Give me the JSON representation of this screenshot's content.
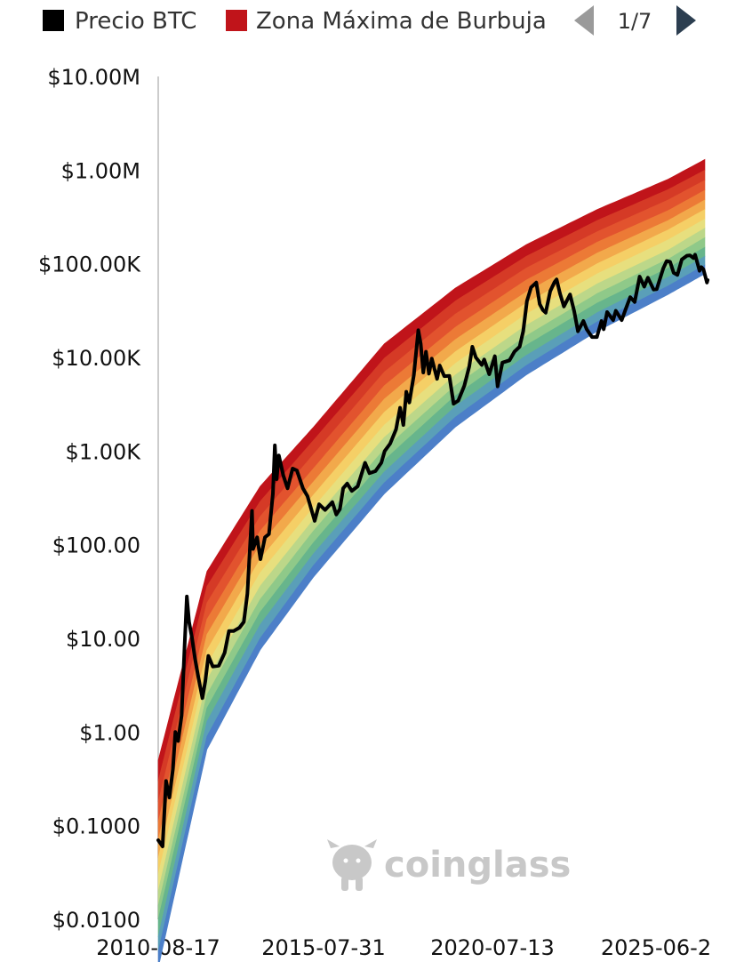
{
  "legend": {
    "items": [
      {
        "label": "Precio BTC",
        "color": "#000000"
      },
      {
        "label": "Zona Máxima de Burbuja",
        "color": "#c0141a"
      }
    ],
    "pager": {
      "label": "1/7",
      "prev_color": "#9a9a9a",
      "next_color": "#2c3e50"
    }
  },
  "watermark": {
    "text": "coinglass",
    "icon": "coinglass-bull-icon"
  },
  "chart_data": {
    "type": "area",
    "y_scale": "log",
    "ylim": [
      0.01,
      10000000
    ],
    "yticks": [
      {
        "value": 10000000,
        "label": "$10.00M"
      },
      {
        "value": 1000000,
        "label": "$1.00M"
      },
      {
        "value": 100000,
        "label": "$100.00K"
      },
      {
        "value": 10000,
        "label": "$10.00K"
      },
      {
        "value": 1000,
        "label": "$1.00K"
      },
      {
        "value": 100,
        "label": "$100.00"
      },
      {
        "value": 10,
        "label": "$10.00"
      },
      {
        "value": 1,
        "label": "$1.00"
      },
      {
        "value": 0.1,
        "label": "$0.1000"
      },
      {
        "value": 0.01,
        "label": "$0.0100"
      }
    ],
    "xlim": [
      "2010-08-17",
      "2026-01-15"
    ],
    "xticks": [
      "2010-08-17",
      "2015-07-31",
      "2020-07-13",
      "2025-06-2"
    ],
    "legend_position": "top",
    "grid": false,
    "bands": {
      "colors": [
        "#c0141a",
        "#d53a26",
        "#e2532e",
        "#ec7a36",
        "#f2a94b",
        "#f5cf66",
        "#e7df7e",
        "#bcd789",
        "#8fc989",
        "#67b58c",
        "#5a9fb8",
        "#4c7fc8"
      ],
      "boundaries": [
        {
          "date": "2010-08-17",
          "values": [
            0.5,
            0.3,
            0.18,
            0.11,
            0.07,
            0.045,
            0.03,
            0.02,
            0.014,
            0.01,
            0.0065,
            0.0045,
            0.003
          ]
        },
        {
          "date": "2012-01-01",
          "values": [
            52,
            36,
            24,
            16,
            11,
            7.5,
            5.2,
            3.6,
            2.5,
            1.8,
            1.3,
            0.9,
            0.65
          ]
        },
        {
          "date": "2013-07-01",
          "values": [
            420,
            290,
            200,
            140,
            100,
            70,
            50,
            36,
            26,
            19,
            14,
            10,
            7.5
          ]
        },
        {
          "date": "2015-01-01",
          "values": [
            1800,
            1300,
            920,
            650,
            470,
            340,
            250,
            185,
            140,
            105,
            80,
            60,
            45
          ]
        },
        {
          "date": "2017-01-01",
          "values": [
            14000,
            9800,
            7000,
            5000,
            3600,
            2600,
            1900,
            1400,
            1050,
            800,
            600,
            460,
            350
          ]
        },
        {
          "date": "2019-01-01",
          "values": [
            55000,
            40000,
            29000,
            21000,
            15500,
            11500,
            8600,
            6500,
            5000,
            3900,
            3000,
            2300,
            1800
          ]
        },
        {
          "date": "2021-01-01",
          "values": [
            160000,
            120000,
            90000,
            67000,
            50000,
            38000,
            29000,
            22000,
            17000,
            13500,
            10500,
            8200,
            6500
          ]
        },
        {
          "date": "2023-01-01",
          "values": [
            380000,
            290000,
            220000,
            170000,
            130000,
            100000,
            78000,
            61000,
            48000,
            38000,
            30000,
            24000,
            19000
          ]
        },
        {
          "date": "2025-01-01",
          "values": [
            800000,
            620000,
            480000,
            370000,
            290000,
            230000,
            180000,
            140000,
            112000,
            90000,
            72000,
            58000,
            47000
          ]
        },
        {
          "date": "2026-01-15",
          "values": [
            1300000,
            1000000,
            780000,
            610000,
            480000,
            380000,
            300000,
            240000,
            190000,
            150000,
            120000,
            97000,
            78000
          ]
        }
      ]
    },
    "series": [
      {
        "name": "Precio BTC",
        "color": "#000000",
        "points": [
          [
            "2010-08-17",
            0.07
          ],
          [
            "2010-10-01",
            0.06
          ],
          [
            "2010-11-06",
            0.3
          ],
          [
            "2010-12-10",
            0.2
          ],
          [
            "2011-01-15",
            0.4
          ],
          [
            "2011-02-10",
            1.0
          ],
          [
            "2011-03-10",
            0.8
          ],
          [
            "2011-04-15",
            1.5
          ],
          [
            "2011-05-15",
            8
          ],
          [
            "2011-06-08",
            28
          ],
          [
            "2011-07-01",
            15
          ],
          [
            "2011-08-01",
            10
          ],
          [
            "2011-09-01",
            6
          ],
          [
            "2011-10-01",
            4
          ],
          [
            "2011-11-15",
            2.3
          ],
          [
            "2011-12-15",
            3.5
          ],
          [
            "2012-01-15",
            6.5
          ],
          [
            "2012-03-01",
            5
          ],
          [
            "2012-05-01",
            5.1
          ],
          [
            "2012-07-01",
            7
          ],
          [
            "2012-08-15",
            12
          ],
          [
            "2012-10-01",
            12
          ],
          [
            "2012-12-01",
            13
          ],
          [
            "2013-01-15",
            15
          ],
          [
            "2013-02-20",
            30
          ],
          [
            "2013-04-09",
            230
          ],
          [
            "2013-04-20",
            90
          ],
          [
            "2013-06-01",
            120
          ],
          [
            "2013-07-05",
            70
          ],
          [
            "2013-08-20",
            120
          ],
          [
            "2013-10-01",
            130
          ],
          [
            "2013-11-10",
            350
          ],
          [
            "2013-11-30",
            1150
          ],
          [
            "2013-12-18",
            500
          ],
          [
            "2014-01-10",
            900
          ],
          [
            "2014-02-25",
            550
          ],
          [
            "2014-04-10",
            400
          ],
          [
            "2014-06-01",
            650
          ],
          [
            "2014-07-15",
            620
          ],
          [
            "2014-09-15",
            400
          ],
          [
            "2014-11-01",
            330
          ],
          [
            "2015-01-14",
            180
          ],
          [
            "2015-03-01",
            270
          ],
          [
            "2015-05-01",
            235
          ],
          [
            "2015-07-15",
            285
          ],
          [
            "2015-08-25",
            210
          ],
          [
            "2015-10-01",
            240
          ],
          [
            "2015-11-04",
            400
          ],
          [
            "2015-12-15",
            450
          ],
          [
            "2016-02-01",
            375
          ],
          [
            "2016-04-01",
            420
          ],
          [
            "2016-06-16",
            750
          ],
          [
            "2016-08-01",
            580
          ],
          [
            "2016-10-01",
            610
          ],
          [
            "2016-12-01",
            750
          ],
          [
            "2017-01-05",
            1000
          ],
          [
            "2017-03-01",
            1200
          ],
          [
            "2017-05-01",
            1700
          ],
          [
            "2017-06-12",
            2900
          ],
          [
            "2017-07-16",
            1900
          ],
          [
            "2017-08-15",
            4300
          ],
          [
            "2017-09-15",
            3300
          ],
          [
            "2017-11-01",
            6500
          ],
          [
            "2017-12-17",
            19500
          ],
          [
            "2018-01-10",
            14000
          ],
          [
            "2018-02-06",
            6900
          ],
          [
            "2018-03-05",
            11500
          ],
          [
            "2018-04-05",
            6700
          ],
          [
            "2018-05-05",
            9700
          ],
          [
            "2018-06-28",
            5900
          ],
          [
            "2018-07-25",
            8200
          ],
          [
            "2018-09-10",
            6300
          ],
          [
            "2018-11-01",
            6350
          ],
          [
            "2018-12-15",
            3200
          ],
          [
            "2019-02-01",
            3450
          ],
          [
            "2019-04-05",
            5000
          ],
          [
            "2019-05-25",
            8000
          ],
          [
            "2019-06-26",
            13000
          ],
          [
            "2019-08-01",
            10000
          ],
          [
            "2019-10-01",
            8300
          ],
          [
            "2019-10-26",
            9500
          ],
          [
            "2019-12-17",
            6600
          ],
          [
            "2020-02-13",
            10300
          ],
          [
            "2020-03-12",
            4900
          ],
          [
            "2020-05-01",
            8800
          ],
          [
            "2020-07-13",
            9300
          ],
          [
            "2020-09-01",
            11500
          ],
          [
            "2020-10-25",
            13000
          ],
          [
            "2020-12-01",
            19000
          ],
          [
            "2021-01-08",
            40000
          ],
          [
            "2021-02-20",
            56000
          ],
          [
            "2021-04-14",
            63000
          ],
          [
            "2021-05-20",
            37000
          ],
          [
            "2021-06-22",
            32000
          ],
          [
            "2021-07-20",
            30000
          ],
          [
            "2021-09-05",
            51000
          ],
          [
            "2021-10-20",
            64000
          ],
          [
            "2021-11-10",
            68000
          ],
          [
            "2021-12-15",
            48000
          ],
          [
            "2022-01-24",
            35000
          ],
          [
            "2022-03-28",
            47000
          ],
          [
            "2022-05-10",
            31000
          ],
          [
            "2022-06-18",
            19000
          ],
          [
            "2022-08-13",
            24500
          ],
          [
            "2022-09-15",
            20000
          ],
          [
            "2022-11-09",
            16500
          ],
          [
            "2022-12-30",
            16500
          ],
          [
            "2023-02-15",
            24500
          ],
          [
            "2023-03-10",
            20000
          ],
          [
            "2023-04-14",
            30500
          ],
          [
            "2023-06-15",
            25000
          ],
          [
            "2023-07-13",
            31500
          ],
          [
            "2023-09-11",
            25000
          ],
          [
            "2023-10-23",
            33000
          ],
          [
            "2023-12-08",
            44000
          ],
          [
            "2024-01-23",
            39000
          ],
          [
            "2024-03-14",
            73000
          ],
          [
            "2024-05-01",
            57000
          ],
          [
            "2024-06-07",
            71000
          ],
          [
            "2024-08-05",
            53000
          ],
          [
            "2024-09-06",
            53500
          ],
          [
            "2024-11-12",
            89000
          ],
          [
            "2024-12-17",
            107000
          ],
          [
            "2025-01-21",
            105000
          ],
          [
            "2025-02-28",
            80000
          ],
          [
            "2025-04-07",
            76000
          ],
          [
            "2025-05-22",
            111000
          ],
          [
            "2025-07-14",
            122000
          ],
          [
            "2025-08-14",
            123000
          ],
          [
            "2025-09-20",
            115000
          ],
          [
            "2025-10-06",
            125000
          ],
          [
            "2025-11-21",
            84000
          ],
          [
            "2025-12-10",
            92000
          ],
          [
            "2025-12-31",
            87000
          ],
          [
            "2026-02-05",
            63000
          ],
          [
            "2026-02-12",
            67000
          ]
        ]
      }
    ]
  }
}
